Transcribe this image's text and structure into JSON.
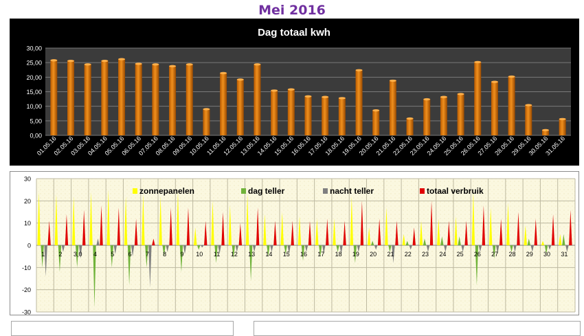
{
  "page_title": "Mei 2016",
  "chart_data": [
    {
      "type": "bar",
      "title": "Dag totaal kwh",
      "xlabel": "",
      "ylabel": "",
      "ylim": [
        0,
        30
      ],
      "yticks": [
        "0,00",
        "5,00",
        "10,00",
        "15,00",
        "20,00",
        "25,00",
        "30,00"
      ],
      "grid": true,
      "bar_color": "#f0901e",
      "background": "#000000",
      "categories": [
        "01.05.16",
        "02.05.16",
        "03.05.16",
        "04.05.16",
        "05.05.16",
        "06.05.16",
        "07.05.16",
        "08.05.16",
        "09.05.16",
        "10.05.16",
        "11.05.16",
        "12.05.16",
        "13.05.16",
        "14.05.16",
        "15.05.16",
        "16.05.16",
        "17.05.16",
        "18.05.16",
        "19.05.16",
        "20.05.16",
        "21.05.16",
        "22.05.16",
        "23.05.16",
        "24.05.16",
        "25.05.16",
        "26.05.16",
        "27.05.16",
        "28.05.16",
        "29.05.16",
        "30.05.16",
        "31.05.16"
      ],
      "values": [
        25.8,
        25.6,
        24.4,
        25.6,
        26.2,
        24.6,
        24.4,
        23.8,
        24.4,
        9.0,
        21.4,
        19.2,
        24.4,
        15.4,
        15.8,
        13.4,
        13.2,
        12.8,
        22.4,
        8.6,
        18.8,
        5.8,
        12.4,
        13.2,
        14.2,
        25.2,
        18.4,
        20.2,
        10.4,
        1.8,
        5.6
      ]
    },
    {
      "type": "bar",
      "title": "",
      "ylim": [
        -30,
        30
      ],
      "yticks": [
        "-30",
        "-20",
        "-10",
        "0",
        "10",
        "20",
        "30"
      ],
      "grid": true,
      "legend_position": "top",
      "x_labels": [
        "1",
        "2",
        "3,0",
        "4",
        "5",
        "6",
        "7",
        "8",
        "9",
        "10",
        "11",
        "12",
        "13",
        "14",
        "15",
        "16",
        "17",
        "18",
        "19",
        "20",
        "21",
        "22",
        "23",
        "24",
        "25",
        "26",
        "27",
        "28",
        "29",
        "30",
        "31"
      ],
      "series": [
        {
          "name": "zonnepanelen",
          "color": "#ffff00",
          "values": [
            24,
            23,
            22,
            24,
            25,
            22,
            23,
            22,
            24,
            8,
            20,
            18,
            23,
            14,
            15,
            13,
            12,
            12,
            22,
            8,
            17,
            5,
            11,
            12,
            13,
            24,
            17,
            19,
            9,
            2,
            5
          ]
        },
        {
          "name": "dag teller",
          "color": "#70b33a",
          "values": [
            -10,
            -12,
            -10,
            -28,
            -10,
            -18,
            -10,
            -5,
            -12,
            -2,
            -8,
            -6,
            -16,
            -5,
            -4,
            -7,
            -5,
            -3,
            -8,
            2,
            -3,
            2,
            3,
            4,
            4,
            -18,
            -6,
            -3,
            3,
            -4,
            5
          ]
        },
        {
          "name": "nacht teller",
          "color": "#7f7f7f",
          "values": [
            -14,
            -3,
            -6,
            3,
            -4,
            -5,
            -19,
            -3,
            -4,
            -1,
            -4,
            -3,
            -3,
            -3,
            -4,
            -3,
            -4,
            -4,
            -3,
            -2,
            -8,
            -2,
            -3,
            -3,
            -3,
            -3,
            -4,
            -3,
            -3,
            -2,
            -3
          ]
        },
        {
          "name": "totaal verbruik",
          "color": "#e00000",
          "values": [
            11,
            14,
            16,
            18,
            17,
            12,
            3,
            17,
            17,
            11,
            15,
            10,
            17,
            11,
            11,
            11,
            12,
            11,
            20,
            12,
            11,
            8,
            20,
            11,
            11,
            18,
            12,
            15,
            12,
            14,
            16
          ]
        }
      ]
    }
  ]
}
